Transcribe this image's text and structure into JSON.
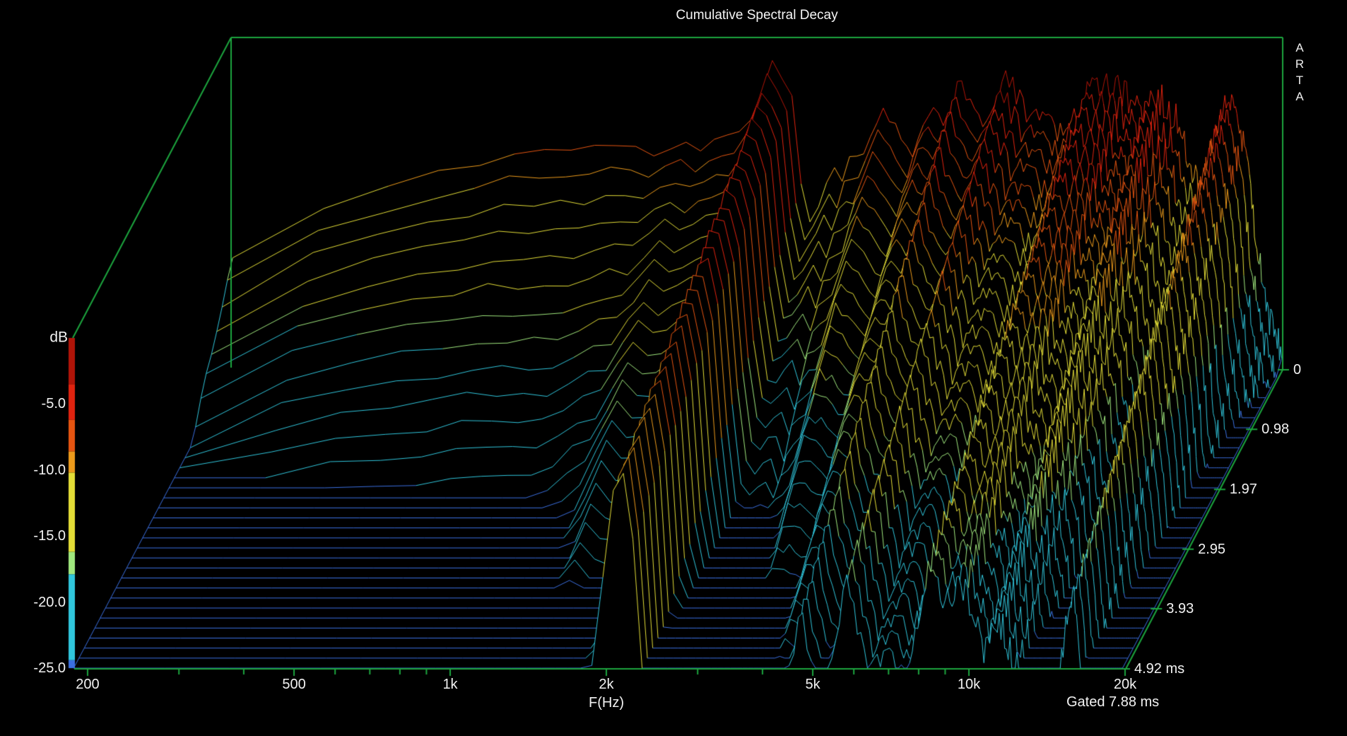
{
  "window": {
    "title": "Cumulative Spectral Decay",
    "watermark": "ARTA",
    "gated_label": "Gated 7.88 ms"
  },
  "axes": {
    "frequency": {
      "label": "F(Hz)",
      "scale": "log",
      "min_hz": 188,
      "max_hz": 19850,
      "major_ticks": [
        {
          "hz": 200,
          "label": "200"
        },
        {
          "hz": 500,
          "label": "500"
        },
        {
          "hz": 1000,
          "label": "1k"
        },
        {
          "hz": 2000,
          "label": "2k"
        },
        {
          "hz": 5000,
          "label": "5k"
        },
        {
          "hz": 10000,
          "label": "10k"
        },
        {
          "hz": 20000,
          "label": "20k"
        }
      ],
      "minor_ticks_hz": [
        300,
        400,
        600,
        700,
        800,
        900,
        3000,
        4000,
        6000,
        7000,
        8000,
        9000
      ]
    },
    "level_db": {
      "label": "dB",
      "min": -25,
      "max": 0,
      "tick_labels": [
        {
          "db": -5,
          "label": "-5.0"
        },
        {
          "db": -10,
          "label": "-10.0"
        },
        {
          "db": -15,
          "label": "-15.0"
        },
        {
          "db": -20,
          "label": "-20.0"
        },
        {
          "db": -25,
          "label": "-25.0"
        }
      ]
    },
    "time_ms": {
      "min": 0,
      "max": 4.92,
      "slice_count": 31,
      "slice_step_ms": 0.164,
      "tick_labels": [
        {
          "ms": 0,
          "label": "0"
        },
        {
          "ms": 0.98,
          "label": "0.98"
        },
        {
          "ms": 1.97,
          "label": "1.97"
        },
        {
          "ms": 2.95,
          "label": "2.95"
        },
        {
          "ms": 3.93,
          "label": "3.93"
        },
        {
          "ms": 4.92,
          "label": "4.92 ms"
        }
      ]
    }
  },
  "chart_data": {
    "type": "waterfall",
    "title": "Cumulative Spectral Decay",
    "xlabel": "F(Hz)",
    "ylabel": "dB",
    "x_scale": "log",
    "x_range_hz": [
      188,
      19850
    ],
    "z_range_db": [
      -25,
      0
    ],
    "time_range_ms": [
      0,
      4.92
    ],
    "slice_count": 31,
    "floor_db": -25,
    "fft_bin_hz": 93.75,
    "gate_ms": 7.88,
    "spectrum_t0_db": [
      [
        188,
        -16.5
      ],
      [
        240,
        -13.8
      ],
      [
        320,
        -12.0
      ],
      [
        430,
        -10.6
      ],
      [
        560,
        -9.4
      ],
      [
        700,
        -8.2
      ],
      [
        900,
        -8.6
      ],
      [
        1100,
        -8.0
      ],
      [
        1250,
        -8.8
      ],
      [
        1400,
        -8.1
      ],
      [
        1550,
        -8.2
      ],
      [
        1700,
        -7.6
      ],
      [
        1850,
        -6.2
      ],
      [
        2000,
        -3.4
      ],
      [
        2110,
        -1.6
      ],
      [
        2250,
        -5.0
      ],
      [
        2400,
        -14.5
      ],
      [
        2520,
        -12.8
      ],
      [
        2700,
        -10.5
      ],
      [
        2900,
        -9.8
      ],
      [
        3170,
        -8.0
      ],
      [
        3400,
        -5.8
      ],
      [
        3620,
        -6.8
      ],
      [
        3860,
        -9.2
      ],
      [
        4150,
        -6.2
      ],
      [
        4450,
        -5.2
      ],
      [
        4770,
        -4.0
      ],
      [
        5050,
        -6.0
      ],
      [
        5350,
        -5.2
      ],
      [
        5810,
        -2.5
      ],
      [
        6200,
        -4.8
      ],
      [
        6600,
        -6.6
      ],
      [
        7000,
        -5.2
      ],
      [
        7330,
        -8.0
      ],
      [
        7800,
        -6.2
      ],
      [
        8300,
        -4.6
      ],
      [
        9000,
        -3.6
      ],
      [
        9800,
        -4.2
      ],
      [
        10700,
        -5.6
      ],
      [
        11500,
        -4.6
      ],
      [
        12500,
        -6.6
      ],
      [
        13200,
        -9.2
      ],
      [
        13900,
        -12.6
      ],
      [
        14600,
        -8.2
      ],
      [
        15300,
        -5.6
      ],
      [
        15900,
        -4.9
      ],
      [
        16800,
        -8.5
      ],
      [
        17800,
        -16.0
      ],
      [
        18800,
        -21.5
      ],
      [
        19850,
        -24.2
      ]
    ],
    "decay_db_per_ms": [
      [
        188,
        6.5
      ],
      [
        300,
        6.8
      ],
      [
        500,
        7.5
      ],
      [
        700,
        8.0
      ],
      [
        1000,
        8.0
      ],
      [
        1250,
        6.2
      ],
      [
        1400,
        4.6
      ],
      [
        1600,
        5.2
      ],
      [
        1800,
        4.6
      ],
      [
        1950,
        3.0
      ],
      [
        2060,
        2.0
      ],
      [
        2160,
        1.45
      ],
      [
        2300,
        2.6
      ],
      [
        2500,
        5.5
      ],
      [
        2800,
        7.0
      ],
      [
        3200,
        6.0
      ],
      [
        3600,
        5.0
      ],
      [
        3900,
        4.6
      ],
      [
        4200,
        4.2
      ],
      [
        4770,
        3.6
      ],
      [
        5100,
        4.2
      ],
      [
        5500,
        3.7
      ],
      [
        5810,
        3.1
      ],
      [
        6300,
        3.9
      ],
      [
        6700,
        3.8
      ],
      [
        7000,
        3.6
      ],
      [
        7600,
        3.8
      ],
      [
        8300,
        2.7
      ],
      [
        9000,
        3.3
      ],
      [
        9800,
        3.0
      ],
      [
        10700,
        3.7
      ],
      [
        11500,
        3.4
      ],
      [
        12500,
        3.9
      ],
      [
        13300,
        4.8
      ],
      [
        13900,
        5.6
      ],
      [
        14800,
        4.0
      ],
      [
        15500,
        3.3
      ],
      [
        15900,
        2.9
      ],
      [
        16800,
        4.2
      ],
      [
        17800,
        5.0
      ],
      [
        19000,
        6.0
      ],
      [
        19850,
        6.5
      ]
    ],
    "resonance_ridges_hz": [
      1400,
      2110,
      4770,
      5810,
      7000,
      8300,
      9800,
      15900
    ],
    "notches_hz": [
      2400,
      3860,
      7330,
      13900,
      17800
    ]
  },
  "colors": {
    "background": "#000000",
    "frame_green": "#1ca53e",
    "text": "#f2f2f2",
    "floor_line": "#3b6fe0",
    "colormap": [
      {
        "min_db": -3.5,
        "color": "#b01408"
      },
      {
        "min_db": -6.2,
        "color": "#e0230f"
      },
      {
        "min_db": -8.6,
        "color": "#e65511"
      },
      {
        "min_db": -10.2,
        "color": "#ec9a1b"
      },
      {
        "min_db": -16.2,
        "color": "#e3dd37"
      },
      {
        "min_db": -17.9,
        "color": "#a0e87e"
      },
      {
        "min_db": -24.4,
        "color": "#30c6dc"
      },
      {
        "min_db": -25.1,
        "color": "#3b6fe0"
      }
    ]
  }
}
